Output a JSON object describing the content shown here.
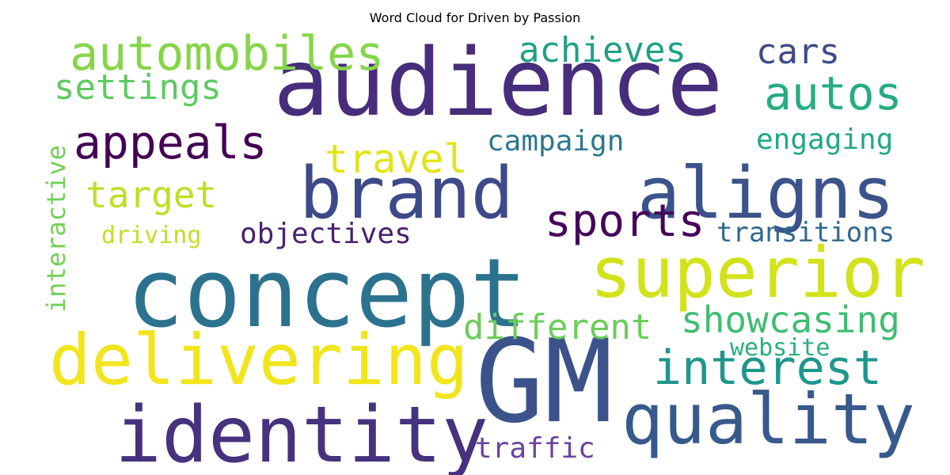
{
  "chart_data": {
    "type": "wordcloud",
    "title": "Word Cloud for Driven by Passion",
    "words": [
      {
        "text": "audience",
        "weight": 1.0,
        "color": "#472d7b"
      },
      {
        "text": "GM",
        "weight": 0.98,
        "color": "#3b528b"
      },
      {
        "text": "concept",
        "weight": 0.95,
        "color": "#2c728e"
      },
      {
        "text": "identity",
        "weight": 0.78,
        "color": "#46327e"
      },
      {
        "text": "aligns",
        "weight": 0.72,
        "color": "#3b528b"
      },
      {
        "text": "brand",
        "weight": 0.72,
        "color": "#3e4989"
      },
      {
        "text": "superior",
        "weight": 0.7,
        "color": "#d2e21b"
      },
      {
        "text": "delivering",
        "weight": 0.68,
        "color": "#f1e51d"
      },
      {
        "text": "quality",
        "weight": 0.68,
        "color": "#38598c"
      },
      {
        "text": "automobiles",
        "weight": 0.48,
        "color": "#86d549"
      },
      {
        "text": "interest",
        "weight": 0.48,
        "color": "#1f968b"
      },
      {
        "text": "appeals",
        "weight": 0.45,
        "color": "#440154"
      },
      {
        "text": "autos",
        "weight": 0.45,
        "color": "#25ac82"
      },
      {
        "text": "sports",
        "weight": 0.42,
        "color": "#450559"
      },
      {
        "text": "showcasing",
        "weight": 0.38,
        "color": "#40bd72"
      },
      {
        "text": "target",
        "weight": 0.38,
        "color": "#bddf26"
      },
      {
        "text": "travel",
        "weight": 0.38,
        "color": "#e2e418"
      },
      {
        "text": "different",
        "weight": 0.36,
        "color": "#6ccd5a"
      },
      {
        "text": "achieves",
        "weight": 0.36,
        "color": "#1fa088"
      },
      {
        "text": "settings",
        "weight": 0.36,
        "color": "#5ec962"
      },
      {
        "text": "cars",
        "weight": 0.36,
        "color": "#3e4a89"
      },
      {
        "text": "campaign",
        "weight": 0.3,
        "color": "#2a788e"
      },
      {
        "text": "engaging",
        "weight": 0.3,
        "color": "#22a785"
      },
      {
        "text": "traffic",
        "weight": 0.3,
        "color": "#6a43a0"
      },
      {
        "text": "objectives",
        "weight": 0.3,
        "color": "#481f70"
      },
      {
        "text": "transitions",
        "weight": 0.28,
        "color": "#31688e"
      },
      {
        "text": "interactive",
        "weight": 0.28,
        "color": "#73d056"
      },
      {
        "text": "website",
        "weight": 0.26,
        "color": "#29af7f"
      },
      {
        "text": "driving",
        "weight": 0.26,
        "color": "#c0df25"
      }
    ]
  }
}
